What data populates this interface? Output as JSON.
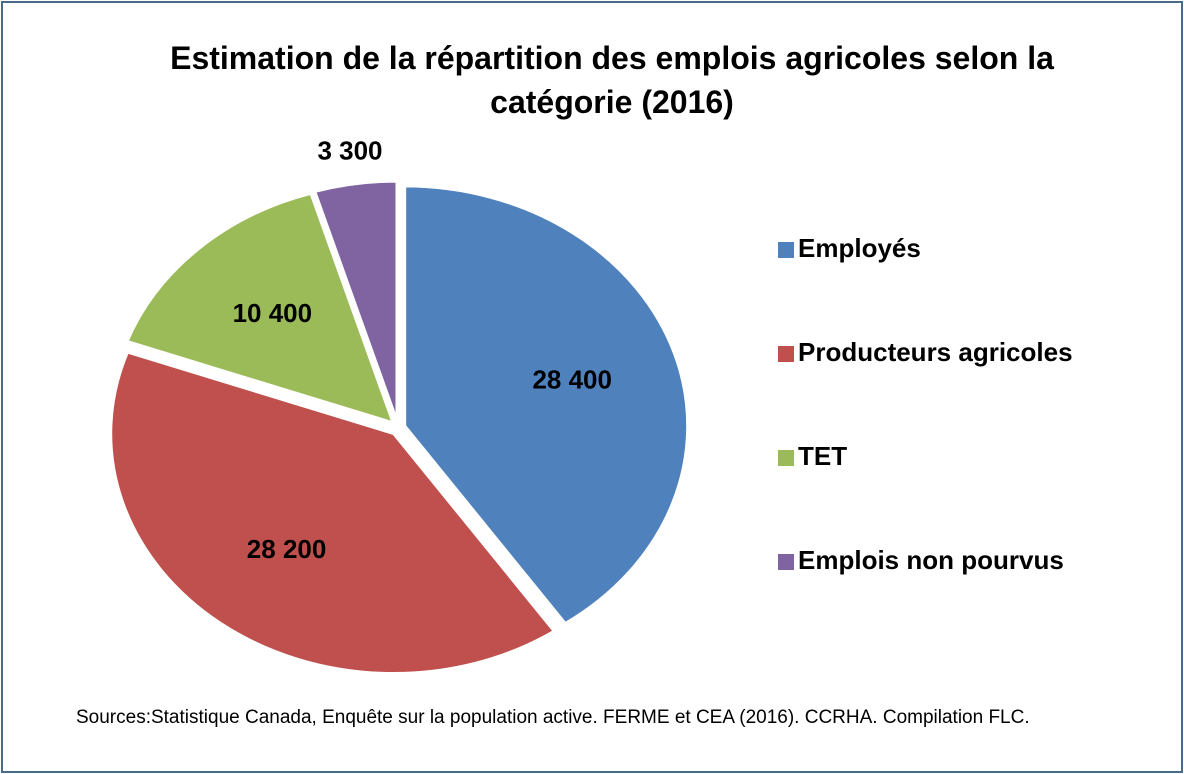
{
  "chart_data": {
    "type": "pie",
    "title": "Estimation de la répartition des emplois agricoles selon la catégorie (2016)",
    "categories": [
      "Employés",
      "Producteurs agricoles",
      "TET",
      "Emplois non pourvus"
    ],
    "values": [
      28400,
      28200,
      10400,
      3300
    ],
    "value_labels": [
      "28 400",
      "28 200",
      "10 400",
      "3 300"
    ],
    "colors": [
      "#4f81bd",
      "#c0504d",
      "#9bbb59",
      "#8064a2"
    ],
    "legend": "right",
    "source": "Sources:Statistique Canada, Enquête sur la population active. FERME et CEA (2016). CCRHA. Compilation FLC."
  }
}
